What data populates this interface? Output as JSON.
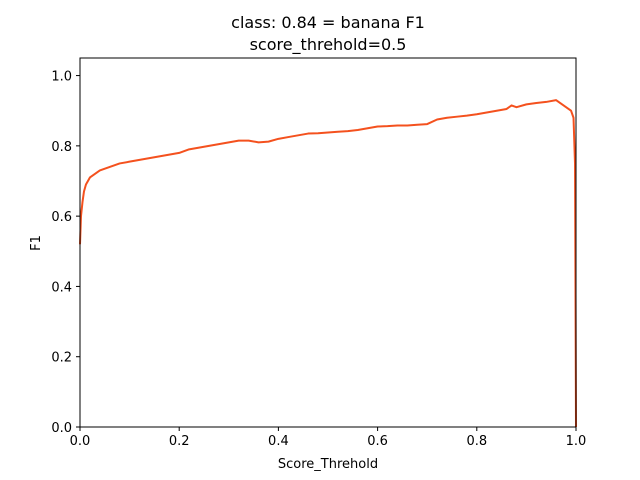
{
  "chart_data": {
    "type": "line",
    "title": "class: 0.84 = banana F1",
    "subtitle": "score_threhold=0.5",
    "xlabel": "Score_Threhold",
    "ylabel": "F1",
    "xlim": [
      0.0,
      1.0
    ],
    "ylim": [
      0.0,
      1.05
    ],
    "xticks": [
      "0.0",
      "0.2",
      "0.4",
      "0.6",
      "0.8",
      "1.0"
    ],
    "yticks": [
      "0.0",
      "0.2",
      "0.4",
      "0.6",
      "0.8",
      "1.0"
    ],
    "grid": false,
    "series": [
      {
        "color": "#f4511e",
        "x": [
          0.0,
          0.002,
          0.005,
          0.008,
          0.012,
          0.016,
          0.02,
          0.025,
          0.03,
          0.035,
          0.04,
          0.05,
          0.06,
          0.07,
          0.08,
          0.1,
          0.12,
          0.14,
          0.16,
          0.18,
          0.2,
          0.22,
          0.24,
          0.26,
          0.28,
          0.3,
          0.32,
          0.34,
          0.36,
          0.38,
          0.4,
          0.42,
          0.44,
          0.46,
          0.48,
          0.5,
          0.52,
          0.54,
          0.56,
          0.58,
          0.6,
          0.62,
          0.64,
          0.66,
          0.68,
          0.7,
          0.72,
          0.74,
          0.76,
          0.78,
          0.8,
          0.82,
          0.84,
          0.86,
          0.87,
          0.88,
          0.9,
          0.92,
          0.94,
          0.96,
          0.965,
          0.97,
          0.98,
          0.99,
          0.995,
          0.998,
          1.0
        ],
        "y": [
          0.52,
          0.6,
          0.64,
          0.67,
          0.69,
          0.7,
          0.71,
          0.715,
          0.72,
          0.725,
          0.73,
          0.735,
          0.74,
          0.745,
          0.75,
          0.755,
          0.76,
          0.765,
          0.77,
          0.775,
          0.78,
          0.79,
          0.795,
          0.8,
          0.805,
          0.81,
          0.815,
          0.815,
          0.81,
          0.812,
          0.82,
          0.825,
          0.83,
          0.835,
          0.836,
          0.838,
          0.84,
          0.842,
          0.845,
          0.85,
          0.855,
          0.856,
          0.858,
          0.858,
          0.86,
          0.862,
          0.875,
          0.88,
          0.883,
          0.886,
          0.89,
          0.895,
          0.9,
          0.905,
          0.915,
          0.91,
          0.918,
          0.922,
          0.925,
          0.93,
          0.925,
          0.92,
          0.91,
          0.9,
          0.88,
          0.75,
          0.0
        ]
      }
    ]
  }
}
